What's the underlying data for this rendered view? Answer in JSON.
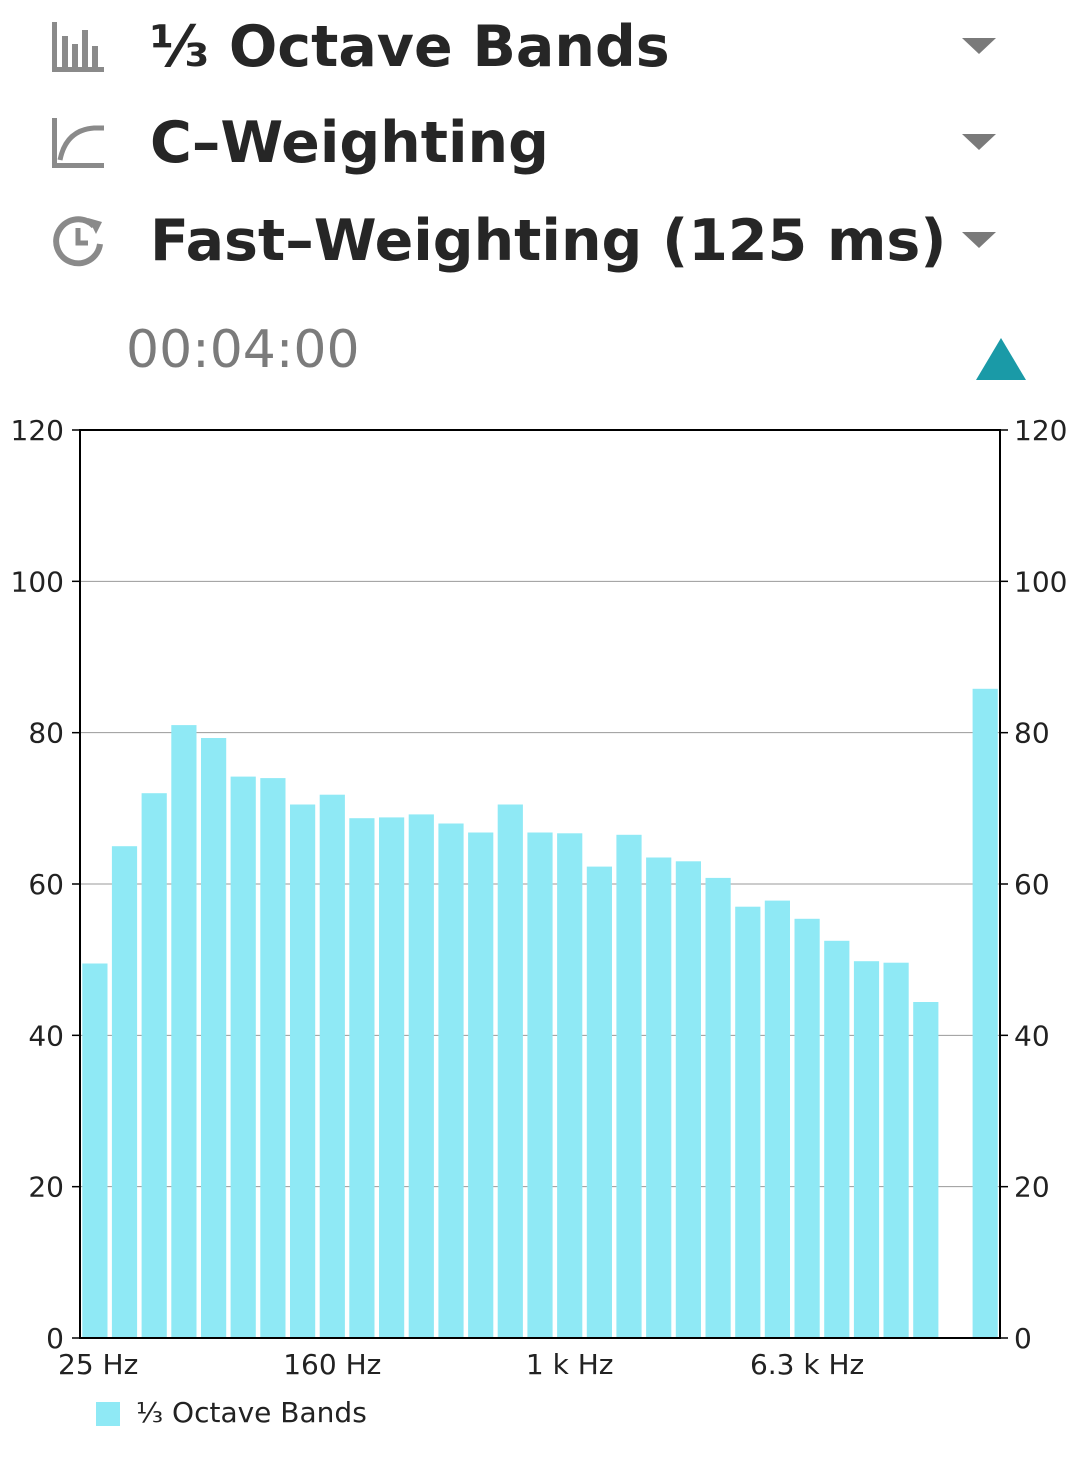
{
  "settings": {
    "band_mode": {
      "label": "⅓ Octave Bands",
      "icon": "bar-chart-icon"
    },
    "weighting": {
      "label": "C–Weighting",
      "icon": "weighting-curve-icon"
    },
    "time_weighting": {
      "label": "Fast–Weighting (125 ms)",
      "icon": "clock-refresh-icon"
    }
  },
  "timer": "00:04:00",
  "collapse_icon": "triangle-up-icon",
  "colors": {
    "bar": "#8fe9f5",
    "accent": "#1a9aa7",
    "grid": "#9a9a9a",
    "axis": "#000000"
  },
  "chart_data": {
    "type": "bar",
    "ylim": [
      0,
      120
    ],
    "y_ticks": [
      "0",
      "20",
      "40",
      "60",
      "80",
      "100",
      "120"
    ],
    "grid": true,
    "x_tick_labels": [
      {
        "index": 0,
        "label": "25 Hz"
      },
      {
        "index": 8,
        "label": "160 Hz"
      },
      {
        "index": 16,
        "label": "1 k Hz"
      },
      {
        "index": 24,
        "label": "6.3 k Hz"
      }
    ],
    "series": [
      {
        "name": "⅓ Octave Bands",
        "values": [
          49.5,
          65,
          72,
          81,
          79.3,
          74.2,
          74,
          70.5,
          71.8,
          68.7,
          68.8,
          69.2,
          68,
          66.8,
          70.5,
          66.8,
          66.7,
          62.3,
          66.5,
          63.5,
          63,
          60.8,
          57,
          57.8,
          55.4,
          52.5,
          49.8,
          49.6,
          44.4,
          0,
          85.8
        ]
      }
    ],
    "legend": "bottom-left"
  }
}
